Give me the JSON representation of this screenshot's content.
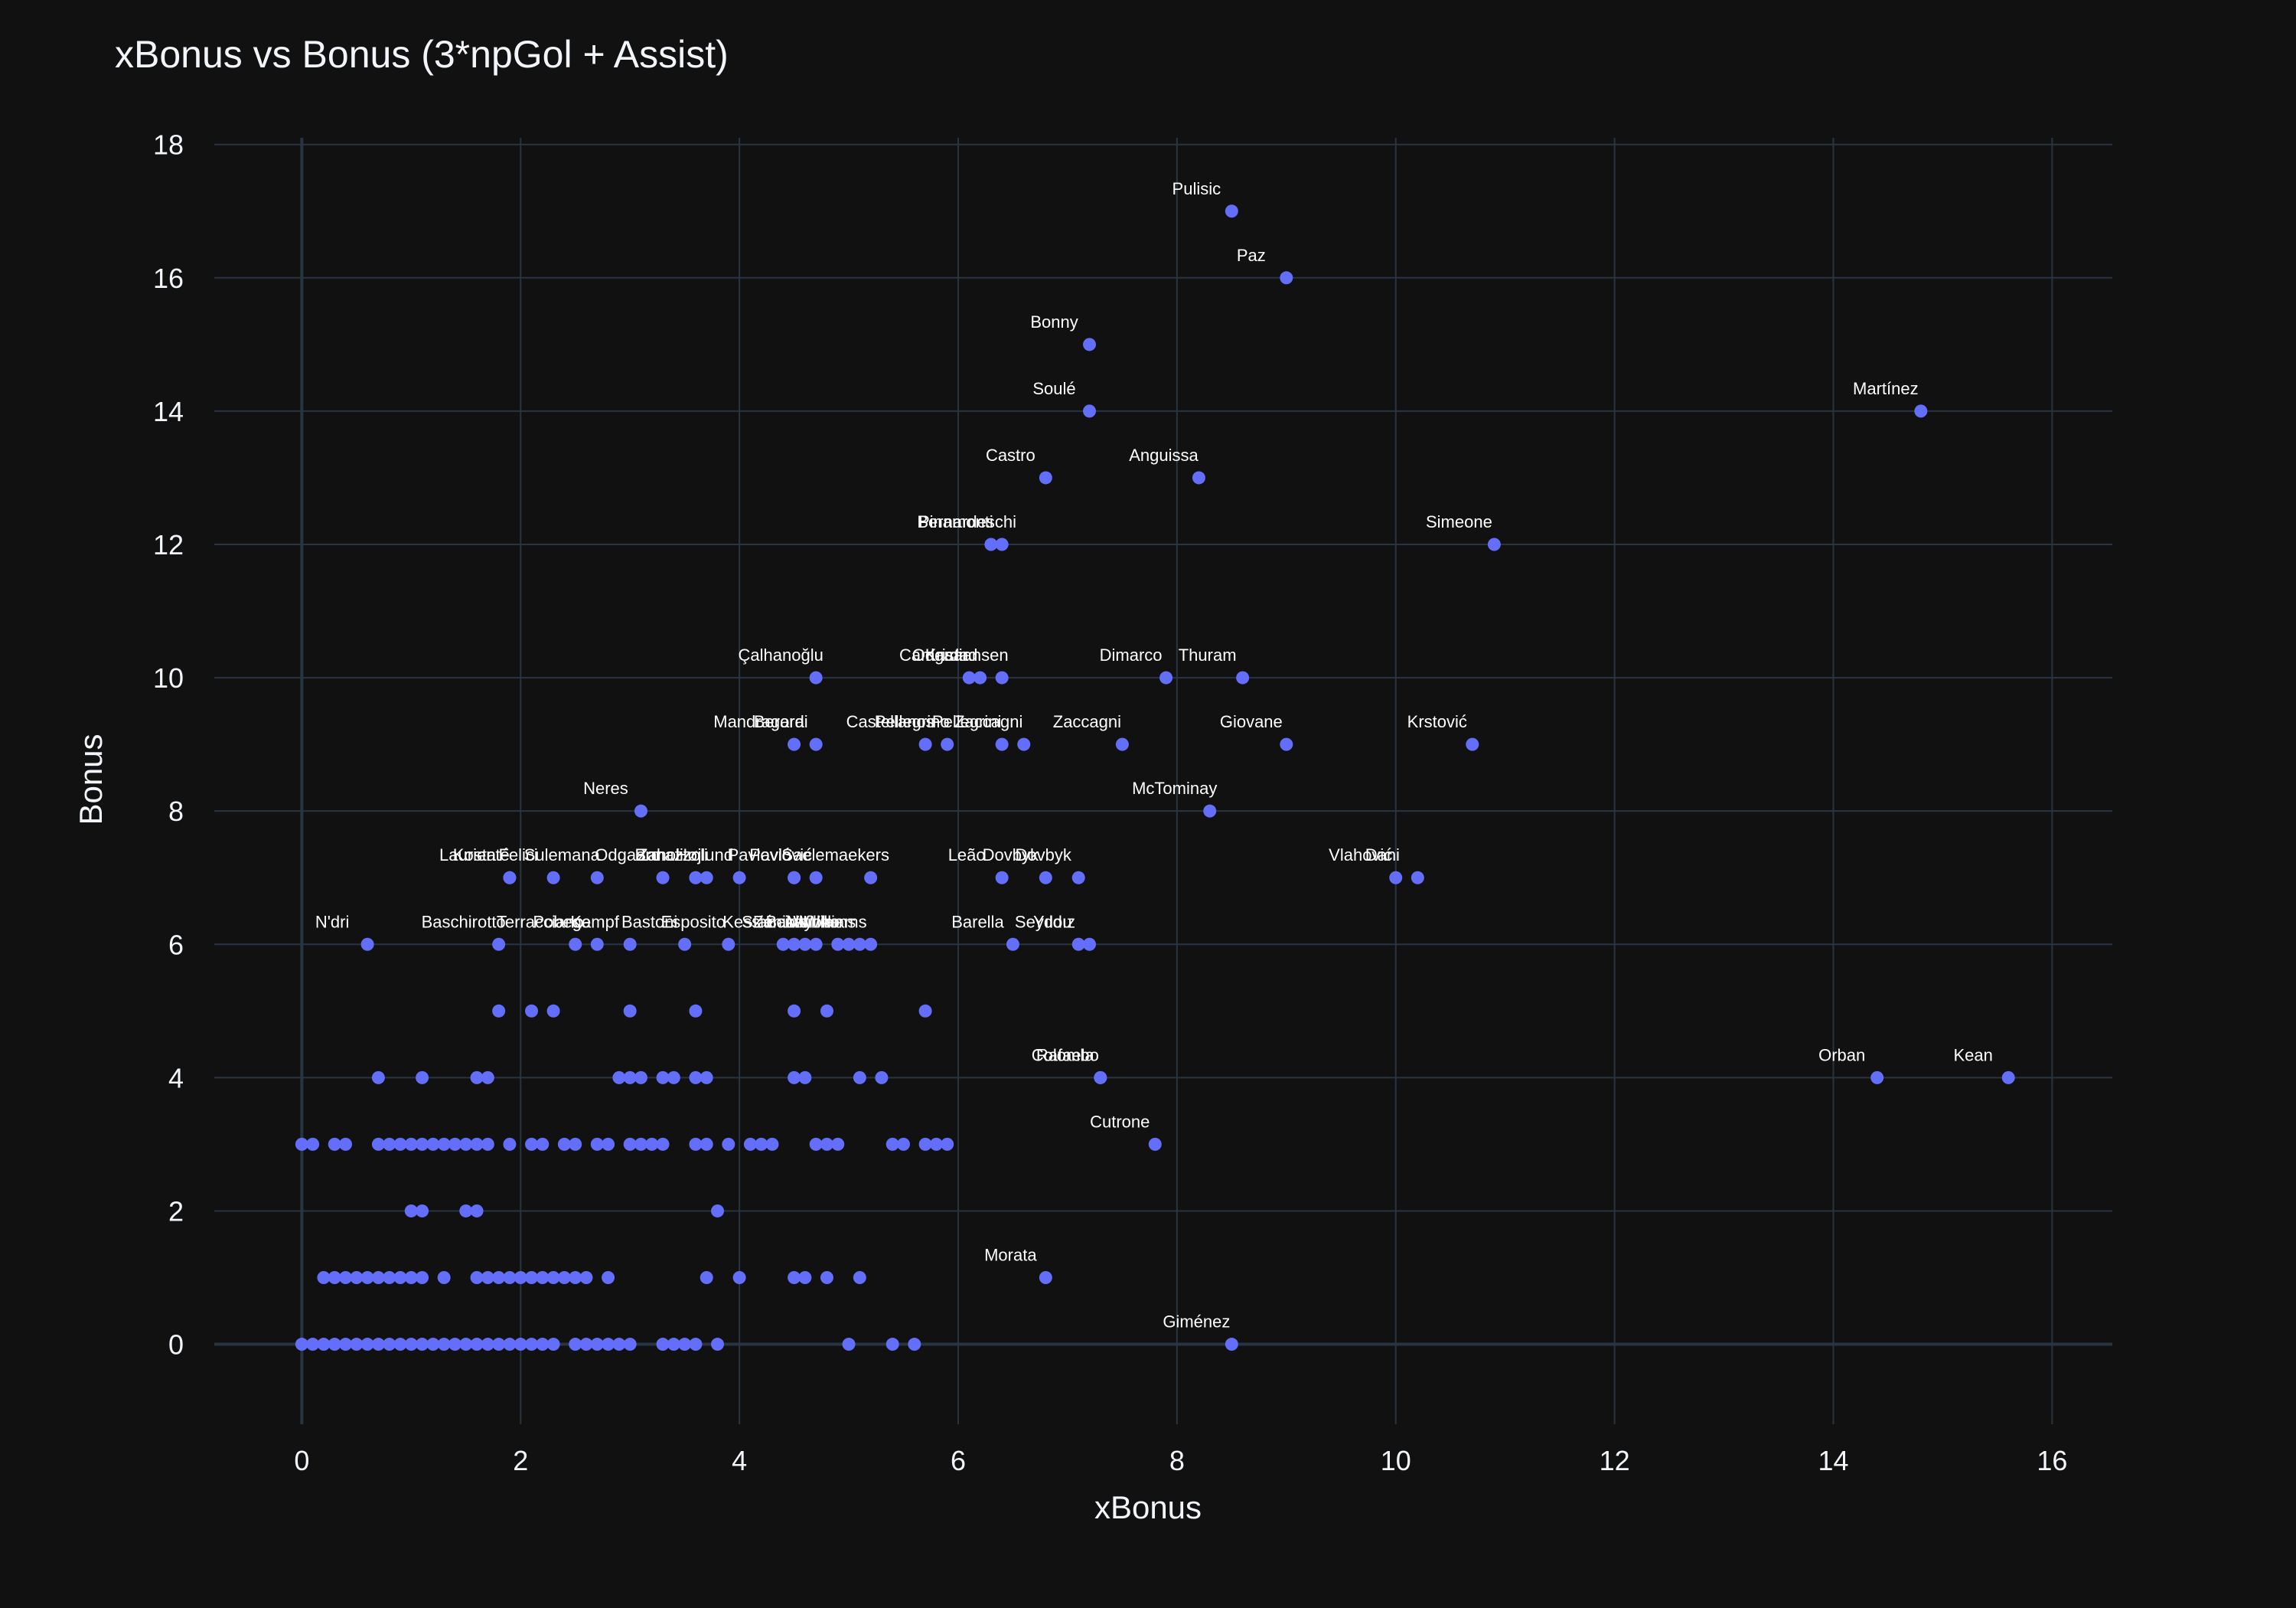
{
  "chart_data": {
    "type": "scatter",
    "title": "xBonus vs Bonus (3*npGol + Assist)",
    "xlabel": "xBonus",
    "ylabel": "Bonus",
    "xlim": [
      -0.8,
      16.55
    ],
    "ylim": [
      -1.2,
      18.1
    ],
    "xticks": [
      0,
      2,
      4,
      6,
      8,
      10,
      12,
      14,
      16
    ],
    "yticks": [
      0,
      2,
      4,
      6,
      8,
      10,
      12,
      14,
      16,
      18
    ],
    "grid": true,
    "marker_color": "#636efa",
    "background": "#111111",
    "labeled_points": [
      {
        "x": 8.5,
        "y": 17,
        "label": "Pulisic"
      },
      {
        "x": 9.0,
        "y": 16,
        "label": "Paz"
      },
      {
        "x": 7.2,
        "y": 15,
        "label": "Bonny"
      },
      {
        "x": 7.2,
        "y": 14,
        "label": "Soulé"
      },
      {
        "x": 14.8,
        "y": 14,
        "label": "Martínez"
      },
      {
        "x": 6.8,
        "y": 13,
        "label": "Castro"
      },
      {
        "x": 8.2,
        "y": 13,
        "label": "Anguissa"
      },
      {
        "x": 6.3,
        "y": 12,
        "label": "Pinamonti"
      },
      {
        "x": 6.4,
        "y": 12,
        "label": "Bernardeschi"
      },
      {
        "x": 10.9,
        "y": 12,
        "label": "Simeone"
      },
      {
        "x": 4.7,
        "y": 10,
        "label": "Çalhanoğlu"
      },
      {
        "x": 6.1,
        "y": 10,
        "label": "Camarda"
      },
      {
        "x": 6.2,
        "y": 10,
        "label": "Odgaard"
      },
      {
        "x": 6.4,
        "y": 10,
        "label": "Kristiansen"
      },
      {
        "x": 7.9,
        "y": 10,
        "label": "Dimarco"
      },
      {
        "x": 8.6,
        "y": 10,
        "label": "Thuram"
      },
      {
        "x": 4.5,
        "y": 9,
        "label": "Mandragora"
      },
      {
        "x": 4.7,
        "y": 9,
        "label": "Berardi"
      },
      {
        "x": 5.7,
        "y": 9,
        "label": "Castellanos"
      },
      {
        "x": 5.9,
        "y": 9,
        "label": "Pellegrino"
      },
      {
        "x": 6.4,
        "y": 9,
        "label": "Pellegrini"
      },
      {
        "x": 6.6,
        "y": 9,
        "label": "Zaccagni"
      },
      {
        "x": 7.5,
        "y": 9,
        "label": "Zaccagni"
      },
      {
        "x": 9.0,
        "y": 9,
        "label": "Giovane"
      },
      {
        "x": 10.7,
        "y": 9,
        "label": "Krstović"
      },
      {
        "x": 3.1,
        "y": 8,
        "label": "Neres"
      },
      {
        "x": 8.3,
        "y": 8,
        "label": "McTominay"
      },
      {
        "x": 1.9,
        "y": 7,
        "label": "Kosta"
      },
      {
        "x": 1.9,
        "y": 7,
        "label": "Laurienté"
      },
      {
        "x": 2.3,
        "y": 7,
        "label": "Felici"
      },
      {
        "x": 2.7,
        "y": 7,
        "label": "Sulemana"
      },
      {
        "x": 3.3,
        "y": 7,
        "label": "Odgaard"
      },
      {
        "x": 3.6,
        "y": 7,
        "label": "Zanoli"
      },
      {
        "x": 3.7,
        "y": 7,
        "label": "Bonazzoli"
      },
      {
        "x": 4.0,
        "y": 7,
        "label": "Højlund"
      },
      {
        "x": 4.5,
        "y": 7,
        "label": "Pavlović"
      },
      {
        "x": 4.7,
        "y": 7,
        "label": "Pavlović"
      },
      {
        "x": 5.2,
        "y": 7,
        "label": "Saelemaekers"
      },
      {
        "x": 6.4,
        "y": 7,
        "label": "Leão"
      },
      {
        "x": 6.8,
        "y": 7,
        "label": "Dovbyk"
      },
      {
        "x": 7.1,
        "y": 7,
        "label": "Dovbyk"
      },
      {
        "x": 10.0,
        "y": 7,
        "label": "Vlahović"
      },
      {
        "x": 10.2,
        "y": 7,
        "label": "Dani"
      },
      {
        "x": 0.6,
        "y": 6,
        "label": "N'dri"
      },
      {
        "x": 1.8,
        "y": 6,
        "label": "Baschirotto"
      },
      {
        "x": 2.5,
        "y": 6,
        "label": "Terracciano"
      },
      {
        "x": 2.7,
        "y": 6,
        "label": "Pobega"
      },
      {
        "x": 3.0,
        "y": 6,
        "label": "Kempf"
      },
      {
        "x": 3.5,
        "y": 6,
        "label": "Bastoni"
      },
      {
        "x": 3.9,
        "y": 6,
        "label": "Esposito"
      },
      {
        "x": 4.4,
        "y": 6,
        "label": "Kessié"
      },
      {
        "x": 4.6,
        "y": 6,
        "label": "Stanciu"
      },
      {
        "x": 4.7,
        "y": 6,
        "label": "Zaniolo"
      },
      {
        "x": 4.9,
        "y": 6,
        "label": "Bakayoko"
      },
      {
        "x": 5.0,
        "y": 6,
        "label": "Vitinha"
      },
      {
        "x": 5.1,
        "y": 6,
        "label": "Williams"
      },
      {
        "x": 5.2,
        "y": 6,
        "label": "Williams"
      },
      {
        "x": 6.5,
        "y": 6,
        "label": "Barella"
      },
      {
        "x": 7.1,
        "y": 6,
        "label": "Seydou"
      },
      {
        "x": 7.2,
        "y": 6,
        "label": "Yıldız"
      },
      {
        "x": 7.3,
        "y": 4,
        "label": "Colombo"
      },
      {
        "x": 7.3,
        "y": 4,
        "label": "Rafaela"
      },
      {
        "x": 14.4,
        "y": 4,
        "label": "Orban"
      },
      {
        "x": 15.6,
        "y": 4,
        "label": "Kean"
      },
      {
        "x": 7.8,
        "y": 3,
        "label": "Cutrone"
      },
      {
        "x": 6.8,
        "y": 1,
        "label": "Morata"
      },
      {
        "x": 8.5,
        "y": 0,
        "label": "Giménez"
      }
    ],
    "rows": [
      {
        "y": 7,
        "x": [
          3.6,
          4.5
        ]
      },
      {
        "y": 6,
        "x": [
          4.5
        ]
      },
      {
        "y": 5,
        "x": [
          1.8,
          2.1,
          2.3,
          3.0,
          3.6,
          4.5,
          4.8,
          5.7
        ]
      },
      {
        "y": 4,
        "x": [
          0.7,
          1.1,
          1.6,
          1.7,
          2.9,
          3.0,
          3.1,
          3.3,
          3.4,
          3.6,
          3.7,
          4.5,
          4.6,
          5.1,
          5.3
        ]
      },
      {
        "y": 3,
        "x": [
          0.0,
          0.1,
          0.3,
          0.4,
          0.7,
          0.8,
          0.9,
          1.0,
          1.1,
          1.2,
          1.3,
          1.4,
          1.5,
          1.6,
          1.7,
          1.9,
          2.1,
          2.2,
          2.4,
          2.5,
          2.7,
          2.8,
          3.0,
          3.1,
          3.2,
          3.3,
          3.6,
          3.7,
          3.9,
          4.1,
          4.2,
          4.3,
          4.7,
          4.8,
          4.9,
          5.4,
          5.5,
          5.7,
          5.8,
          5.9
        ]
      },
      {
        "y": 2,
        "x": [
          1.0,
          1.1,
          1.5,
          1.6,
          3.8
        ]
      },
      {
        "y": 1,
        "x": [
          0.2,
          0.3,
          0.4,
          0.5,
          0.6,
          0.7,
          0.8,
          0.9,
          1.0,
          1.1,
          1.3,
          1.6,
          1.7,
          1.8,
          1.9,
          2.0,
          2.1,
          2.2,
          2.3,
          2.4,
          2.5,
          2.6,
          2.8,
          3.7,
          4.0,
          4.5,
          4.6,
          4.8,
          5.1
        ]
      },
      {
        "y": 0,
        "x": [
          0.0,
          0.1,
          0.2,
          0.3,
          0.4,
          0.5,
          0.6,
          0.7,
          0.8,
          0.9,
          1.0,
          1.1,
          1.2,
          1.3,
          1.4,
          1.5,
          1.6,
          1.7,
          1.8,
          1.9,
          2.0,
          2.1,
          2.2,
          2.3,
          2.5,
          2.6,
          2.7,
          2.8,
          2.9,
          3.0,
          3.3,
          3.4,
          3.5,
          3.6,
          3.8,
          5.0,
          5.4,
          5.6
        ]
      }
    ]
  }
}
